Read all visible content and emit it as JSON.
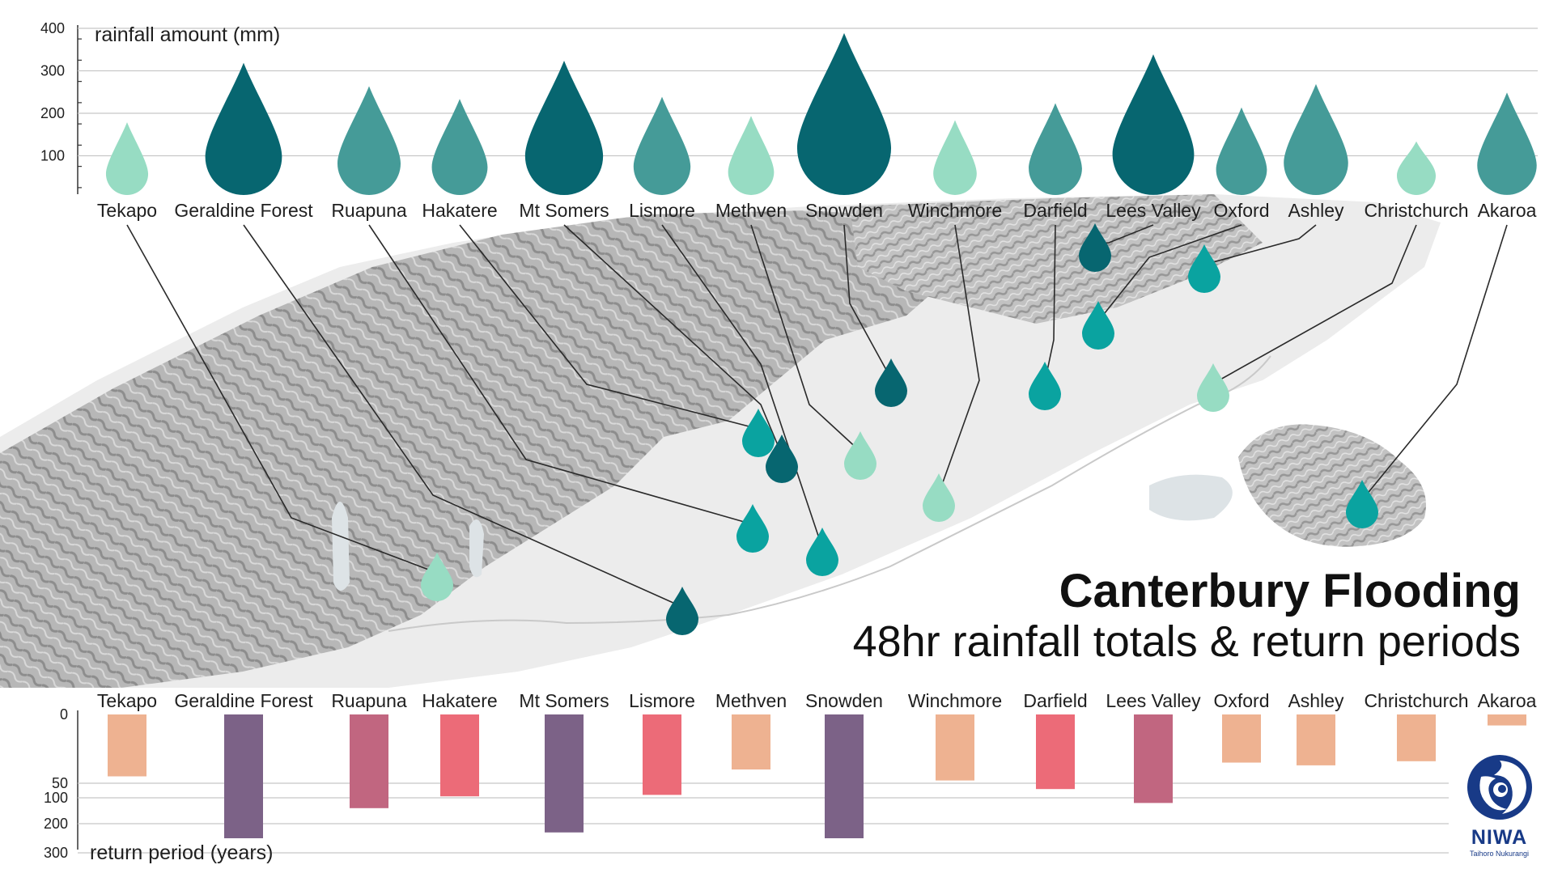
{
  "title": "Canterbury Flooding",
  "subtitle": "48hr rainfall totals & return periods",
  "logo": {
    "name": "NIWA",
    "tagline": "Taihoro Nukurangi",
    "color": "#183a87"
  },
  "colors": {
    "drop_light": "#97dcc3",
    "drop_mid": "#459b98",
    "drop_dark": "#076670",
    "map_drop": "#0aa3a0",
    "map_drop_light": "#97dcc3",
    "map_drop_dark": "#076670",
    "rp_low": "#eeb291",
    "rp_mid": "#ec6b78",
    "rp_high": "#c16680",
    "rp_top": "#7c6287"
  },
  "chart_data": [
    {
      "type": "bar",
      "mark": "raindrop",
      "ylabel": "rainfall amount (mm)",
      "ylim": [
        0,
        400
      ],
      "yticks": [
        100,
        200,
        300,
        400
      ],
      "grid": true,
      "categories": [
        "Tekapo",
        "Geraldine Forest",
        "Ruapuna",
        "Hakatere",
        "Mt Somers",
        "Lismore",
        "Methven",
        "Snowden",
        "Winchmore",
        "Darfield",
        "Lees Valley",
        "Oxford",
        "Ashley",
        "Christchurch",
        "Akaroa"
      ],
      "values": [
        175,
        315,
        260,
        230,
        320,
        235,
        190,
        385,
        180,
        220,
        335,
        210,
        265,
        130,
        245
      ],
      "intensity": [
        "light",
        "dark",
        "mid",
        "mid",
        "dark",
        "mid",
        "light",
        "dark",
        "light",
        "mid",
        "dark",
        "mid",
        "mid",
        "light",
        "mid"
      ]
    },
    {
      "type": "bar",
      "ylabel": "return period (years)",
      "yticks": [
        0,
        50,
        100,
        200,
        300
      ],
      "grid": true,
      "categories": [
        "Tekapo",
        "Geraldine Forest",
        "Ruapuna",
        "Hakatere",
        "Mt Somers",
        "Lismore",
        "Methven",
        "Snowden",
        "Winchmore",
        "Darfield",
        "Lees Valley",
        "Oxford",
        "Ashley",
        "Christchurch",
        "Akaroa"
      ],
      "values": [
        45,
        250,
        140,
        95,
        230,
        90,
        40,
        250,
        48,
        70,
        120,
        35,
        37,
        34,
        8
      ],
      "intensity": [
        "low",
        "top",
        "high",
        "mid",
        "top",
        "mid",
        "low",
        "top",
        "low",
        "mid",
        "high",
        "low",
        "low",
        "low",
        "low"
      ]
    }
  ],
  "map": {
    "stations": [
      {
        "name": "Tekapo",
        "shade": "light"
      },
      {
        "name": "Geraldine Forest",
        "shade": "dark"
      },
      {
        "name": "Ruapuna",
        "shade": "mid"
      },
      {
        "name": "Hakatere",
        "shade": "mid"
      },
      {
        "name": "Mt Somers",
        "shade": "dark"
      },
      {
        "name": "Lismore",
        "shade": "mid"
      },
      {
        "name": "Methven",
        "shade": "light"
      },
      {
        "name": "Snowden",
        "shade": "dark"
      },
      {
        "name": "Winchmore",
        "shade": "light"
      },
      {
        "name": "Darfield",
        "shade": "mid"
      },
      {
        "name": "Lees Valley",
        "shade": "dark"
      },
      {
        "name": "Oxford",
        "shade": "mid"
      },
      {
        "name": "Ashley",
        "shade": "mid"
      },
      {
        "name": "Christchurch",
        "shade": "light"
      },
      {
        "name": "Akaroa",
        "shade": "mid"
      }
    ]
  }
}
